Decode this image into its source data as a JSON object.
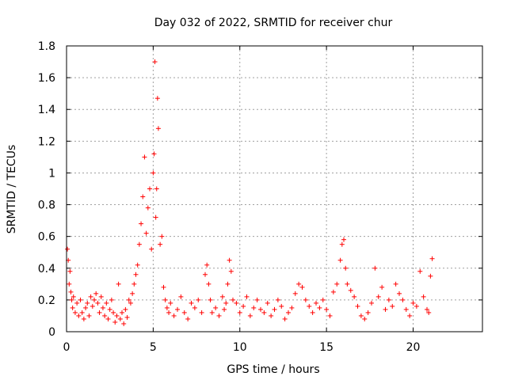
{
  "chart_data": {
    "type": "scatter",
    "title": "Day 032 of 2022, SRMTID for receiver chur",
    "xlabel": "GPS time / hours",
    "ylabel": "SRMTID / TECUs",
    "xlim": [
      0,
      24
    ],
    "ylim": [
      0,
      1.8
    ],
    "xticks": [
      0,
      5,
      10,
      15,
      20
    ],
    "yticks": [
      0,
      0.2,
      0.4,
      0.6,
      0.8,
      1,
      1.2,
      1.4,
      1.6,
      1.8
    ],
    "xtick_labels": [
      "0",
      "5",
      "10",
      "15",
      "20"
    ],
    "ytick_labels": [
      "0",
      "0.2",
      "0.4",
      "0.6",
      "0.8",
      "1",
      "1.2",
      "1.4",
      "1.6",
      "1.8"
    ],
    "grid": true,
    "marker": "+",
    "color": "#ff0000",
    "series": [
      {
        "name": "SRMTID",
        "x": [
          0.05,
          0.1,
          0.15,
          0.2,
          0.25,
          0.3,
          0.35,
          0.4,
          0.5,
          0.6,
          0.7,
          0.8,
          0.9,
          1.0,
          1.1,
          1.2,
          1.3,
          1.4,
          1.5,
          1.6,
          1.7,
          1.8,
          1.9,
          2.0,
          2.1,
          2.2,
          2.3,
          2.4,
          2.5,
          2.6,
          2.7,
          2.8,
          2.9,
          3.0,
          3.1,
          3.2,
          3.3,
          3.4,
          3.5,
          3.6,
          3.7,
          3.8,
          3.9,
          4.0,
          4.1,
          4.2,
          4.3,
          4.4,
          4.5,
          4.6,
          4.7,
          4.8,
          4.9,
          5.0,
          5.05,
          5.1,
          5.15,
          5.2,
          5.25,
          5.3,
          5.4,
          5.5,
          5.6,
          5.7,
          5.8,
          5.9,
          6.0,
          6.2,
          6.4,
          6.6,
          6.8,
          7.0,
          7.2,
          7.4,
          7.6,
          7.8,
          8.0,
          8.1,
          8.2,
          8.3,
          8.4,
          8.6,
          8.8,
          9.0,
          9.1,
          9.2,
          9.3,
          9.4,
          9.5,
          9.6,
          9.8,
          10.0,
          10.2,
          10.4,
          10.6,
          10.8,
          11.0,
          11.2,
          11.4,
          11.6,
          11.8,
          12.0,
          12.2,
          12.4,
          12.6,
          12.8,
          13.0,
          13.2,
          13.4,
          13.6,
          13.8,
          14.0,
          14.2,
          14.4,
          14.6,
          14.8,
          15.0,
          15.2,
          15.4,
          15.6,
          15.8,
          15.9,
          16.0,
          16.1,
          16.2,
          16.4,
          16.6,
          16.8,
          17.0,
          17.2,
          17.4,
          17.6,
          17.8,
          18.0,
          18.2,
          18.4,
          18.6,
          18.8,
          19.0,
          19.2,
          19.4,
          19.6,
          19.8,
          20.0,
          20.2,
          20.4,
          20.6,
          20.8,
          20.9,
          21.0,
          21.1
        ],
        "y": [
          0.52,
          0.45,
          0.3,
          0.38,
          0.25,
          0.2,
          0.15,
          0.22,
          0.12,
          0.18,
          0.1,
          0.2,
          0.12,
          0.08,
          0.15,
          0.18,
          0.1,
          0.22,
          0.16,
          0.2,
          0.24,
          0.18,
          0.12,
          0.22,
          0.15,
          0.1,
          0.18,
          0.08,
          0.14,
          0.2,
          0.12,
          0.06,
          0.1,
          0.3,
          0.08,
          0.12,
          0.05,
          0.14,
          0.09,
          0.2,
          0.18,
          0.24,
          0.3,
          0.36,
          0.42,
          0.55,
          0.68,
          0.85,
          1.1,
          0.62,
          0.78,
          0.9,
          0.52,
          1.0,
          1.12,
          1.7,
          0.72,
          0.9,
          1.47,
          1.28,
          0.55,
          0.6,
          0.28,
          0.2,
          0.15,
          0.12,
          0.18,
          0.1,
          0.14,
          0.22,
          0.12,
          0.08,
          0.18,
          0.15,
          0.2,
          0.12,
          0.36,
          0.42,
          0.3,
          0.2,
          0.12,
          0.15,
          0.1,
          0.22,
          0.14,
          0.18,
          0.3,
          0.45,
          0.38,
          0.2,
          0.18,
          0.12,
          0.16,
          0.22,
          0.1,
          0.15,
          0.2,
          0.14,
          0.12,
          0.18,
          0.1,
          0.14,
          0.2,
          0.16,
          0.08,
          0.12,
          0.15,
          0.24,
          0.3,
          0.28,
          0.2,
          0.16,
          0.12,
          0.18,
          0.15,
          0.2,
          0.14,
          0.1,
          0.25,
          0.3,
          0.45,
          0.55,
          0.58,
          0.4,
          0.3,
          0.26,
          0.22,
          0.16,
          0.1,
          0.08,
          0.12,
          0.18,
          0.4,
          0.22,
          0.28,
          0.14,
          0.2,
          0.16,
          0.3,
          0.24,
          0.2,
          0.14,
          0.1,
          0.18,
          0.16,
          0.38,
          0.22,
          0.14,
          0.12,
          0.35,
          0.46
        ]
      }
    ]
  }
}
